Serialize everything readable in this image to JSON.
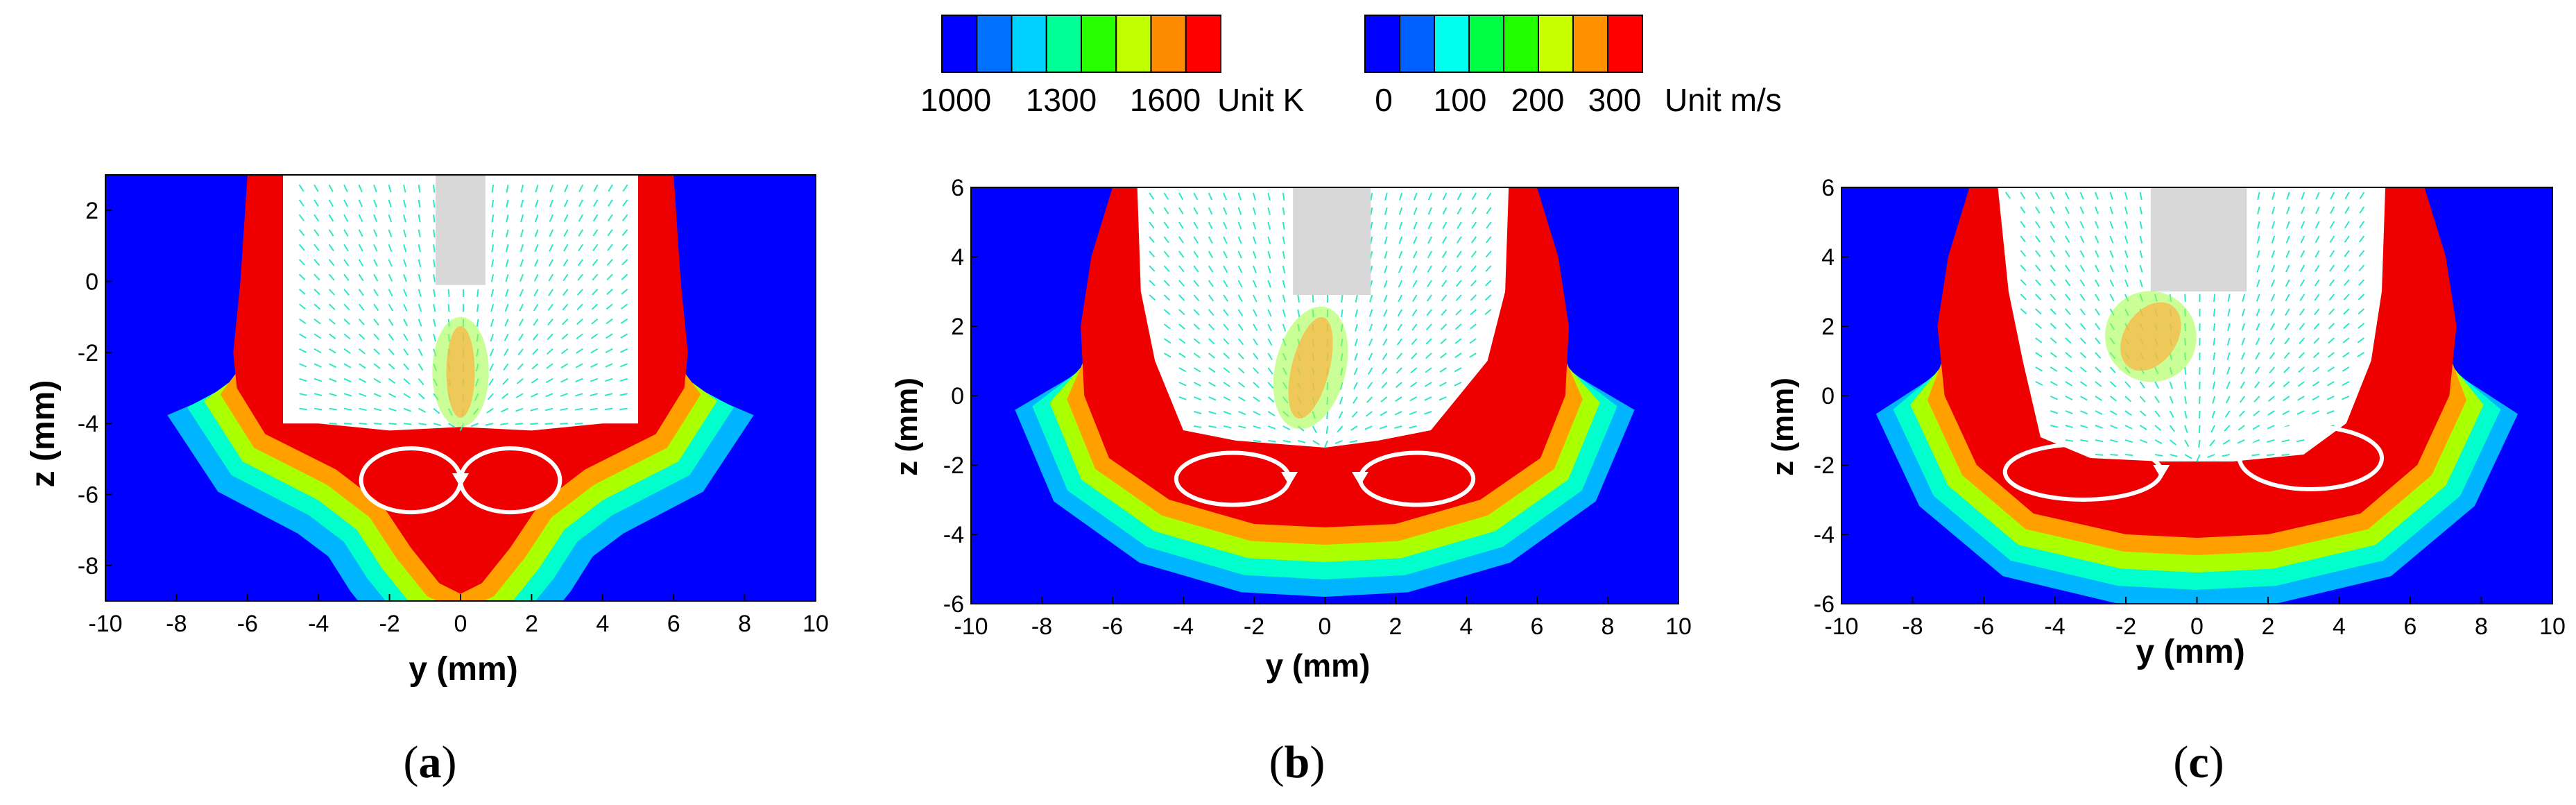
{
  "colors": {
    "temperature_scale": [
      "#0000ff",
      "#0070ff",
      "#00d2ff",
      "#00ff96",
      "#28ff00",
      "#bfff00",
      "#ff8c00",
      "#ff0000"
    ],
    "velocity_scale": [
      "#0000ff",
      "#0060ff",
      "#00ffee",
      "#00ff44",
      "#22ff00",
      "#c8ff00",
      "#ff9000",
      "#ff0000"
    ],
    "background_domain": "#0000ff",
    "keyhole_tool": "#d8d8d8",
    "streamline": "#ffffff"
  },
  "legends": {
    "temperature": {
      "tick_labels": [
        "1000",
        "1300",
        "1600"
      ],
      "unit": "Unit K"
    },
    "velocity": {
      "tick_labels": [
        "0",
        "100",
        "200",
        "300"
      ],
      "unit": "Unit m/s"
    }
  },
  "chart_data": [
    {
      "type": "heatmap",
      "panel": "(a)",
      "caption_letter": "a",
      "xlabel": "y (mm)",
      "ylabel": "z (mm)",
      "xlim": [
        -10,
        10
      ],
      "ylim": [
        -9,
        3
      ],
      "xticks": [
        -10,
        -8,
        -6,
        -4,
        -2,
        0,
        2,
        4,
        6,
        8,
        10
      ],
      "yticks": [
        2,
        0,
        -2,
        -4,
        -6,
        -8
      ],
      "keyhole_boundary": [
        [
          -5,
          3
        ],
        [
          -5,
          -4
        ],
        [
          -4,
          -4
        ],
        [
          -2,
          -4.2
        ],
        [
          0,
          -4.1
        ],
        [
          2,
          -4.2
        ],
        [
          4,
          -4
        ],
        [
          5,
          -4
        ],
        [
          5,
          3
        ]
      ],
      "melt_pool_boundary": [
        [
          -6,
          3
        ],
        [
          -6.2,
          0
        ],
        [
          -6.4,
          -2
        ],
        [
          -6.3,
          -3
        ],
        [
          -5.5,
          -4.3
        ],
        [
          -3.5,
          -5.3
        ],
        [
          -2.2,
          -6.3
        ],
        [
          -1.4,
          -7.5
        ],
        [
          -0.6,
          -8.5
        ],
        [
          0,
          -8.8
        ],
        [
          0.6,
          -8.5
        ],
        [
          1.4,
          -7.5
        ],
        [
          2.2,
          -6.3
        ],
        [
          3.5,
          -5.3
        ],
        [
          5.5,
          -4.3
        ],
        [
          6.3,
          -3
        ],
        [
          6.4,
          -2
        ],
        [
          6.2,
          0
        ],
        [
          6,
          3
        ]
      ],
      "isotherm_offsets_mm": [
        0.5,
        1.0,
        1.5,
        2.1
      ],
      "tool_rect": {
        "y": [
          -0.7,
          0.7
        ],
        "z": [
          -0.1,
          3.0
        ]
      },
      "vortices": [
        {
          "center": [
            -1.4,
            -5.6
          ],
          "rx": 1.4,
          "rz": 0.9
        },
        {
          "center": [
            1.4,
            -5.6
          ],
          "rx": 1.4,
          "rz": 0.9
        }
      ],
      "velocity_jet": {
        "y": [
          -0.6,
          0.6
        ],
        "z": [
          -4.1,
          -1.0
        ],
        "angle_deg": 0
      }
    },
    {
      "type": "heatmap",
      "panel": "(b)",
      "caption_letter": "b",
      "xlabel": "y (mm)",
      "ylabel": "z (mm)",
      "xlim": [
        -10,
        10
      ],
      "ylim": [
        -6,
        6
      ],
      "xticks": [
        -10,
        -8,
        -6,
        -4,
        -2,
        0,
        2,
        4,
        6,
        8,
        10
      ],
      "yticks": [
        6,
        4,
        2,
        0,
        -2,
        -4,
        -6
      ],
      "keyhole_boundary": [
        [
          -5.3,
          6
        ],
        [
          -5.2,
          3
        ],
        [
          -4.8,
          1
        ],
        [
          -4,
          -1
        ],
        [
          -2.5,
          -1.3
        ],
        [
          0,
          -1.5
        ],
        [
          1.5,
          -1.3
        ],
        [
          3,
          -1
        ],
        [
          4.6,
          1
        ],
        [
          5.1,
          3
        ],
        [
          5.2,
          6
        ]
      ],
      "melt_pool_boundary": [
        [
          -6,
          6
        ],
        [
          -6.6,
          4
        ],
        [
          -6.9,
          2
        ],
        [
          -6.8,
          0
        ],
        [
          -6.1,
          -1.8
        ],
        [
          -4.4,
          -3.0
        ],
        [
          -2,
          -3.7
        ],
        [
          0,
          -3.8
        ],
        [
          2,
          -3.7
        ],
        [
          4.4,
          -3.0
        ],
        [
          6.1,
          -1.8
        ],
        [
          6.8,
          0
        ],
        [
          6.9,
          2
        ],
        [
          6.6,
          4
        ],
        [
          6,
          6
        ]
      ],
      "isotherm_offsets_mm": [
        0.5,
        1.0,
        1.5,
        2.0
      ],
      "tool_rect": {
        "y": [
          -0.9,
          1.3
        ],
        "z": [
          2.9,
          6.0
        ]
      },
      "vortices": [
        {
          "center": [
            -2.6,
            -2.4
          ],
          "rx": 1.6,
          "rz": 0.75
        },
        {
          "center": [
            2.6,
            -2.4
          ],
          "rx": 1.6,
          "rz": 0.75
        }
      ],
      "velocity_jet": {
        "y": [
          -1.2,
          0.4
        ],
        "z": [
          -1.0,
          2.6
        ],
        "angle_deg": 14
      }
    },
    {
      "type": "heatmap",
      "panel": "(c)",
      "caption_letter": "c",
      "xlabel": "y (mm)",
      "ylabel": "z (mm)",
      "xlim": [
        -10,
        10
      ],
      "ylim": [
        -6,
        6
      ],
      "xticks": [
        -10,
        -8,
        -6,
        -4,
        -2,
        0,
        2,
        4,
        6,
        8,
        10
      ],
      "yticks": [
        6,
        4,
        2,
        0,
        -2,
        -4,
        -6
      ],
      "keyhole_boundary": [
        [
          -5.6,
          6
        ],
        [
          -5.3,
          3
        ],
        [
          -4.9,
          1
        ],
        [
          -4.4,
          -1.2
        ],
        [
          -3,
          -1.8
        ],
        [
          -1,
          -1.9
        ],
        [
          1,
          -1.9
        ],
        [
          3,
          -1.7
        ],
        [
          4.2,
          -0.8
        ],
        [
          4.9,
          1
        ],
        [
          5.2,
          3
        ],
        [
          5.3,
          6
        ]
      ],
      "melt_pool_boundary": [
        [
          -6.4,
          6
        ],
        [
          -7.0,
          4
        ],
        [
          -7.3,
          2
        ],
        [
          -7.1,
          0
        ],
        [
          -6.2,
          -2.0
        ],
        [
          -4.6,
          -3.4
        ],
        [
          -2,
          -4.0
        ],
        [
          0,
          -4.1
        ],
        [
          2,
          -4.0
        ],
        [
          4.6,
          -3.4
        ],
        [
          6.2,
          -2.0
        ],
        [
          7.1,
          0
        ],
        [
          7.3,
          2
        ],
        [
          7.0,
          4
        ],
        [
          6.4,
          6
        ]
      ],
      "isotherm_offsets_mm": [
        0.5,
        1.0,
        1.5,
        2.0
      ],
      "tool_rect": {
        "y": [
          -1.3,
          1.4
        ],
        "z": [
          3.0,
          6.0
        ]
      },
      "vortices": [
        {
          "center": [
            -3.2,
            -2.2
          ],
          "rx": 2.2,
          "rz": 0.8
        },
        {
          "center": [
            3.2,
            -1.8
          ],
          "rx": 2.0,
          "rz": 0.9
        }
      ],
      "velocity_jet": {
        "y": [
          -2.4,
          -0.2
        ],
        "z": [
          0.4,
          3.0
        ],
        "angle_deg": 35
      }
    }
  ]
}
